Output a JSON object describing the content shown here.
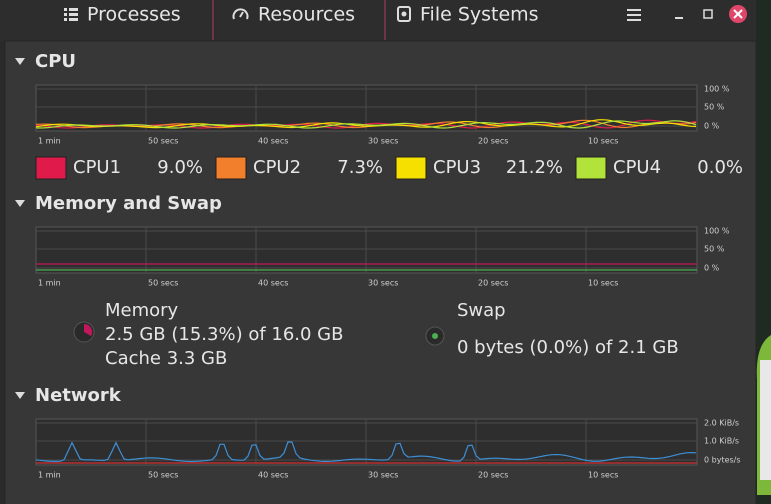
{
  "tabs": [
    "Processes",
    "Resources",
    "File Systems"
  ],
  "cpu": {
    "title": "CPU",
    "graph": {
      "time_labels": [
        "1 min",
        "50 secs",
        "40 secs",
        "30 secs",
        "20 secs",
        "10 secs"
      ],
      "y_labels": [
        "100 %",
        "50 %",
        "0 %"
      ]
    },
    "legend": [
      {
        "name": "CPU1",
        "value": "9.0%",
        "color": "#e01b4c"
      },
      {
        "name": "CPU2",
        "value": "7.3%",
        "color": "#f27f2c"
      },
      {
        "name": "CPU3",
        "value": "21.2%",
        "color": "#f6e000"
      },
      {
        "name": "CPU4",
        "value": "0.0%",
        "color": "#b2e33a"
      }
    ]
  },
  "memory": {
    "title": "Memory and Swap",
    "graph": {
      "time_labels": [
        "1 min",
        "50 secs",
        "40 secs",
        "30 secs",
        "20 secs",
        "10 secs"
      ],
      "y_labels": [
        "100 %",
        "50 %",
        "0 %"
      ]
    },
    "memory_label": "Memory",
    "memory_used": "2.5 GB (15.3%) of 16.0 GB",
    "cache": "Cache 3.3 GB",
    "swap_label": "Swap",
    "swap_used": "0 bytes (0.0%) of 2.1 GB"
  },
  "network": {
    "title": "Network",
    "graph": {
      "time_labels": [
        "1 min",
        "50 secs",
        "40 secs",
        "30 secs",
        "20 secs",
        "10 secs"
      ],
      "y_labels": [
        "2.0 KiB/s",
        "1.0 KiB/s",
        "0 bytes/s"
      ]
    }
  }
}
